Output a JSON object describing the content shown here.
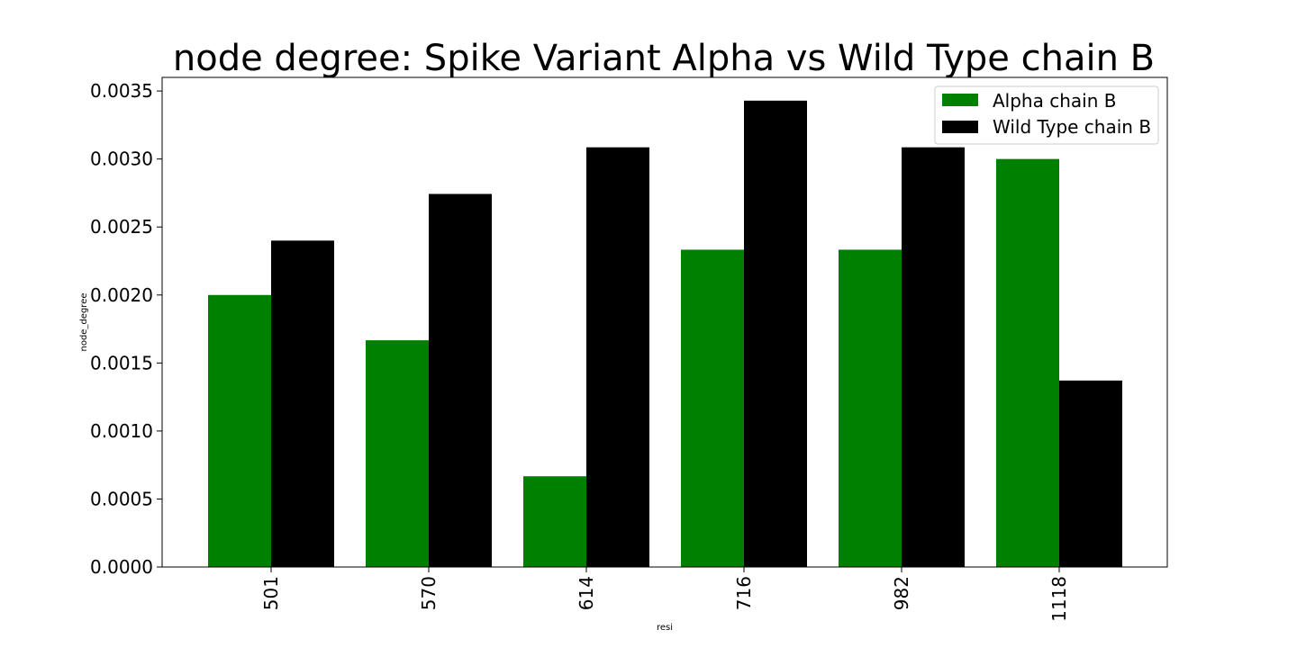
{
  "chart_data": {
    "type": "bar",
    "title": "node degree: Spike Variant Alpha vs Wild Type chain B",
    "xlabel": "resi",
    "ylabel": "node_degree",
    "categories": [
      "501",
      "570",
      "614",
      "716",
      "982",
      "1118"
    ],
    "series": [
      {
        "name": "Alpha chain B",
        "color": "#008000",
        "values": [
          0.002,
          0.001667,
          0.000667,
          0.002333,
          0.002333,
          0.003
        ]
      },
      {
        "name": "Wild Type chain B",
        "color": "#000000",
        "values": [
          0.0024,
          0.002743,
          0.003086,
          0.003429,
          0.003086,
          0.001371
        ]
      }
    ],
    "ylim": [
      0,
      0.0036
    ],
    "yticks": [
      "0.0000",
      "0.0005",
      "0.0010",
      "0.0015",
      "0.0020",
      "0.0025",
      "0.0030",
      "0.0035"
    ],
    "ytick_values": [
      0,
      0.0005,
      0.001,
      0.0015,
      0.002,
      0.0025,
      0.003,
      0.0035
    ],
    "grid": false,
    "legend_position": "top-right"
  }
}
